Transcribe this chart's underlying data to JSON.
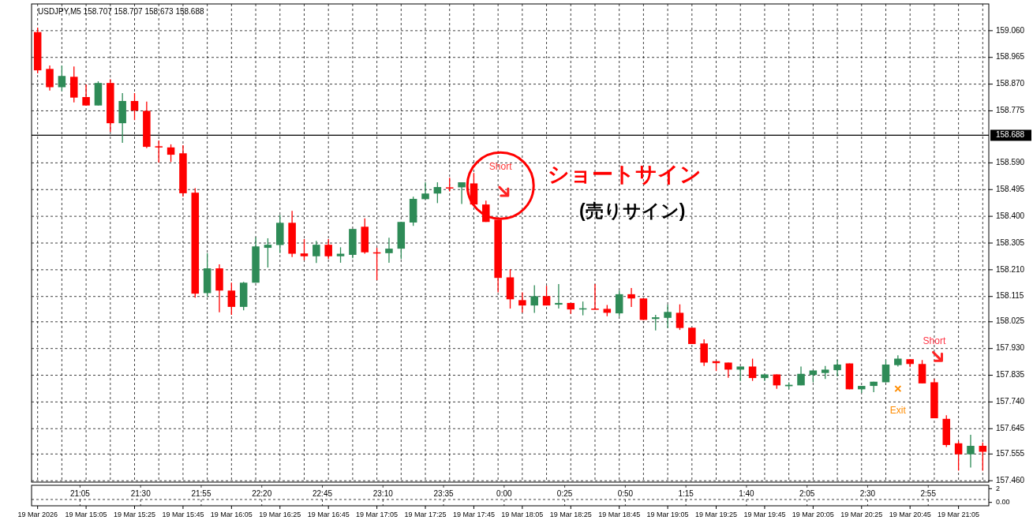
{
  "chart_data": [
    {
      "type": "candlestick",
      "title": "USDJPY,M5  158.707 158.707 158.673 158.688",
      "categories": [
        "19 Mar 2026",
        null,
        null,
        null,
        "19 Mar 15:05",
        null,
        null,
        null,
        "19 Mar 15:25",
        null,
        null,
        null,
        "19 Mar 15:45",
        null,
        null,
        null,
        "19 Mar 16:05",
        null,
        null,
        null,
        "19 Mar 16:25",
        null,
        null,
        null,
        "19 Mar 16:45",
        null,
        null,
        null,
        "19 Mar 17:05",
        null,
        null,
        null,
        "19 Mar 17:25",
        null,
        null,
        null,
        "19 Mar 17:45",
        null,
        null,
        null,
        "19 Mar 18:05",
        null,
        null,
        null,
        "19 Mar 18:25",
        null,
        null,
        null,
        "19 Mar 18:45",
        null,
        null,
        null,
        "19 Mar 19:05",
        null,
        null,
        null,
        "19 Mar 19:25",
        null,
        null,
        null,
        "19 Mar 19:45",
        null,
        null,
        null,
        "19 Mar 20:05",
        null,
        null,
        null,
        "19 Mar 20:25",
        null,
        null,
        null,
        "19 Mar 20:45",
        null,
        null,
        null,
        "19 Mar 21:05",
        null,
        null
      ],
      "ohlc": [
        [
          159.055,
          159.071,
          158.908,
          158.919
        ],
        [
          158.924,
          158.936,
          158.847,
          158.859
        ],
        [
          158.859,
          158.936,
          158.845,
          158.899
        ],
        [
          158.896,
          158.933,
          158.805,
          158.822
        ],
        [
          158.824,
          158.869,
          158.794,
          158.794
        ],
        [
          158.794,
          158.88,
          158.794,
          158.874
        ],
        [
          158.874,
          158.887,
          158.7,
          158.731
        ],
        [
          158.731,
          158.838,
          158.661,
          158.81
        ],
        [
          158.81,
          158.838,
          158.742,
          158.776
        ],
        [
          158.775,
          158.808,
          158.642,
          158.647
        ],
        [
          158.649,
          158.67,
          158.591,
          158.647
        ],
        [
          158.645,
          158.656,
          158.593,
          158.619
        ],
        [
          158.624,
          158.653,
          158.47,
          158.482
        ],
        [
          158.484,
          158.5,
          158.111,
          158.125
        ],
        [
          158.127,
          158.269,
          158.115,
          158.215
        ],
        [
          158.215,
          158.229,
          158.059,
          158.136
        ],
        [
          158.136,
          158.164,
          158.05,
          158.078
        ],
        [
          158.078,
          158.167,
          158.066,
          158.164
        ],
        [
          158.164,
          158.325,
          158.164,
          158.293
        ],
        [
          158.288,
          158.322,
          158.218,
          158.299
        ],
        [
          158.298,
          158.405,
          158.269,
          158.377
        ],
        [
          158.377,
          158.419,
          158.255,
          158.267
        ],
        [
          158.268,
          158.319,
          158.244,
          158.258
        ],
        [
          158.258,
          158.313,
          158.234,
          158.299
        ],
        [
          158.299,
          158.319,
          158.248,
          158.258
        ],
        [
          158.258,
          158.29,
          158.235,
          158.267
        ],
        [
          158.263,
          158.355,
          158.251,
          158.355
        ],
        [
          158.363,
          158.393,
          158.267,
          158.272
        ],
        [
          158.272,
          158.288,
          158.173,
          158.27
        ],
        [
          158.269,
          158.324,
          158.235,
          158.285
        ],
        [
          158.285,
          158.38,
          158.248,
          158.38
        ],
        [
          158.378,
          158.47,
          158.366,
          158.462
        ],
        [
          158.461,
          158.521,
          158.461,
          158.481
        ],
        [
          158.481,
          158.521,
          158.447,
          158.504
        ],
        [
          158.503,
          158.537,
          158.489,
          158.502
        ],
        [
          158.503,
          158.521,
          158.444,
          158.521
        ],
        [
          158.517,
          158.554,
          158.442,
          158.442
        ],
        [
          158.442,
          158.456,
          158.38,
          158.38
        ],
        [
          158.388,
          158.388,
          158.13,
          158.181
        ],
        [
          158.183,
          158.212,
          158.072,
          158.105
        ],
        [
          158.102,
          158.13,
          158.058,
          158.083
        ],
        [
          158.083,
          158.155,
          158.057,
          158.116
        ],
        [
          158.116,
          158.153,
          158.083,
          158.083
        ],
        [
          158.086,
          158.159,
          158.072,
          158.092
        ],
        [
          158.092,
          158.092,
          158.053,
          158.069
        ],
        [
          158.072,
          158.097,
          158.048,
          158.073
        ],
        [
          158.072,
          158.159,
          158.069,
          158.07
        ],
        [
          158.071,
          158.085,
          158.045,
          158.057
        ],
        [
          158.055,
          158.136,
          158.045,
          158.123
        ],
        [
          158.123,
          158.145,
          158.078,
          158.108
        ],
        [
          158.108,
          158.108,
          158.031,
          158.032
        ],
        [
          158.035,
          158.05,
          157.994,
          158.041
        ],
        [
          158.039,
          158.086,
          158.003,
          158.06
        ],
        [
          158.057,
          158.087,
          157.996,
          158.003
        ],
        [
          158.004,
          158.004,
          157.946,
          157.946
        ],
        [
          157.948,
          157.963,
          157.868,
          157.88
        ],
        [
          157.885,
          157.885,
          157.85,
          157.878
        ],
        [
          157.88,
          157.88,
          157.826,
          157.855
        ],
        [
          157.855,
          157.866,
          157.815,
          157.866
        ],
        [
          157.866,
          157.894,
          157.815,
          157.825
        ],
        [
          157.825,
          157.838,
          157.815,
          157.838
        ],
        [
          157.838,
          157.838,
          157.787,
          157.799
        ],
        [
          157.796,
          157.81,
          157.785,
          157.801
        ],
        [
          157.799,
          157.866,
          157.799,
          157.84
        ],
        [
          157.836,
          157.852,
          157.81,
          157.852
        ],
        [
          157.843,
          157.868,
          157.822,
          157.855
        ],
        [
          157.853,
          157.89,
          157.831,
          157.873
        ],
        [
          157.877,
          157.877,
          157.785,
          157.785
        ],
        [
          157.785,
          157.797,
          157.773,
          157.797
        ],
        [
          157.797,
          157.812,
          157.775,
          157.812
        ],
        [
          157.81,
          157.89,
          157.81,
          157.873
        ],
        [
          157.871,
          157.906,
          157.866,
          157.894
        ],
        [
          157.892,
          157.892,
          157.864,
          157.875
        ],
        [
          157.875,
          157.889,
          157.806,
          157.806
        ],
        [
          157.81,
          157.822,
          157.682,
          157.682
        ],
        [
          157.68,
          157.693,
          157.58,
          157.587
        ],
        [
          157.593,
          157.6,
          157.496,
          157.554
        ],
        [
          157.554,
          157.623,
          157.507,
          157.584
        ],
        [
          157.584,
          157.596,
          157.496,
          157.563
        ]
      ],
      "colors": [
        "#ff0000",
        "#ff0000",
        "#2e8b57",
        "#ff0000",
        "#ff0000",
        "#2e8b57",
        "#ff0000",
        "#2e8b57",
        "#ff0000",
        "#ff0000",
        "#ff0000",
        "#ff0000",
        "#ff0000",
        "#ff0000",
        "#2e8b57",
        "#ff0000",
        "#ff0000",
        "#2e8b57",
        "#2e8b57",
        "#2e8b57",
        "#2e8b57",
        "#ff0000",
        "#ff0000",
        "#2e8b57",
        "#ff0000",
        "#2e8b57",
        "#2e8b57",
        "#ff0000",
        "#ff0000",
        "#2e8b57",
        "#2e8b57",
        "#2e8b57",
        "#2e8b57",
        "#2e8b57",
        "#ff0000",
        "#2e8b57",
        "#ff0000",
        "#ff0000",
        "#ff0000",
        "#ff0000",
        "#ff0000",
        "#2e8b57",
        "#ff0000",
        "#2e8b57",
        "#ff0000",
        "#2e8b57",
        "#ff0000",
        "#ff0000",
        "#2e8b57",
        "#ff0000",
        "#ff0000",
        "#2e8b57",
        "#2e8b57",
        "#ff0000",
        "#ff0000",
        "#ff0000",
        "#ff0000",
        "#ff0000",
        "#2e8b57",
        "#ff0000",
        "#2e8b57",
        "#ff0000",
        "#2e8b57",
        "#2e8b57",
        "#2e8b57",
        "#2e8b57",
        "#2e8b57",
        "#ff0000",
        "#2e8b57",
        "#2e8b57",
        "#2e8b57",
        "#2e8b57",
        "#ff0000",
        "#ff0000",
        "#ff0000",
        "#ff0000",
        "#ff0000",
        "#2e8b57",
        "#ff0000"
      ],
      "ylim": [
        157.455,
        159.155
      ],
      "yticks": [
        {
          "value": 159.06,
          "label": "159.060"
        },
        158.965,
        {
          "value": 158.87,
          "label": "158.870"
        },
        158.775,
        {
          "value": 158.59,
          "label": "158.590"
        },
        158.495,
        {
          "value": 158.4,
          "label": "158.400"
        },
        158.305,
        {
          "value": 158.21,
          "label": "158.210"
        },
        158.115,
        158.025,
        {
          "value": 157.93,
          "label": "157.930"
        },
        157.835,
        {
          "value": 157.74,
          "label": "157.740"
        },
        157.645,
        157.555,
        {
          "value": 157.46,
          "label": "157.460"
        }
      ],
      "ref_lines": [
        {
          "axis": "y",
          "value": 158.688,
          "label": "158.688",
          "color": "#000000"
        }
      ],
      "annotations": [
        "Short",
        "ショートサイン",
        "(売りサイン)",
        "Short",
        "Exit"
      ],
      "grid": true
    },
    {
      "type": "line",
      "xlim": [
        "2026-03-19T20:45",
        "2026-03-20T03:20"
      ],
      "xticks": [
        {
          "value": "2026-03-19T21:05",
          "label": "21:05"
        },
        {
          "value": "2026-03-19T21:30",
          "label": "21:30"
        },
        {
          "value": "2026-03-19T21:55",
          "label": "21:55"
        },
        {
          "value": "2026-03-19T22:20",
          "label": "22:20"
        },
        {
          "value": "2026-03-19T22:45",
          "label": "22:45"
        },
        {
          "value": "2026-03-19T23:10",
          "label": "23:10"
        },
        {
          "value": "2026-03-19T23:35",
          "label": "23:35"
        },
        {
          "value": "2026-03-20T00:00",
          "label": "0:00"
        },
        {
          "value": "2026-03-20T00:25",
          "label": "0:25"
        },
        {
          "value": "2026-03-20T00:50",
          "label": "0:50"
        },
        {
          "value": "2026-03-20T01:15",
          "label": "1:15"
        },
        {
          "value": "2026-03-20T01:40",
          "label": "1:40"
        },
        {
          "value": "2026-03-20T02:05",
          "label": "2:05"
        },
        {
          "value": "2026-03-20T02:30",
          "label": "2:30"
        },
        {
          "value": "2026-03-20T02:55",
          "label": "2:55"
        }
      ],
      "ylim": [
        -0.5,
        2.5
      ],
      "yticks": [
        {
          "value": 2,
          "label": "2"
        },
        {
          "value": 0,
          "label": "0.00"
        }
      ],
      "grid": true
    }
  ]
}
